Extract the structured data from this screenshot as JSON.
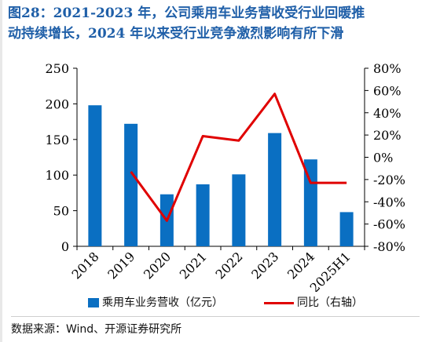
{
  "header": {
    "title_line1": "图28：2021-2023 年，公司乘用车业务营收受行业回暖推",
    "title_line2": "动持续增长，2024 年以来受行业竞争激烈影响有所下滑"
  },
  "source": "数据来源：Wind、开源证券研究所",
  "colors": {
    "bar": "#0a6fc2",
    "line": "#e00000",
    "title": "#1f5fa8"
  },
  "chart_data": {
    "type": "bar",
    "categories": [
      "2018",
      "2019",
      "2020",
      "2021",
      "2022",
      "2023",
      "2024",
      "2025H1"
    ],
    "series": [
      {
        "name": "乘用车业务营收（亿元）",
        "type": "bar",
        "axis": "left",
        "values": [
          198,
          172,
          73,
          87,
          101,
          159,
          122,
          48
        ]
      },
      {
        "name": "同比（右轴）",
        "type": "line",
        "axis": "right",
        "values": [
          null,
          -13,
          -57,
          19,
          15,
          57,
          -23,
          -23
        ]
      }
    ],
    "ylim": [
      0,
      250
    ],
    "yticks": [
      "0",
      "50",
      "100",
      "150",
      "200",
      "250"
    ],
    "y2lim": [
      -80,
      80
    ],
    "y2ticks": [
      "-80%",
      "-60%",
      "-40%",
      "-20%",
      "0%",
      "20%",
      "40%",
      "60%",
      "80%"
    ],
    "legend": [
      "乘用车业务营收（亿元）",
      "同比（右轴）"
    ],
    "legend_position": "bottom"
  }
}
